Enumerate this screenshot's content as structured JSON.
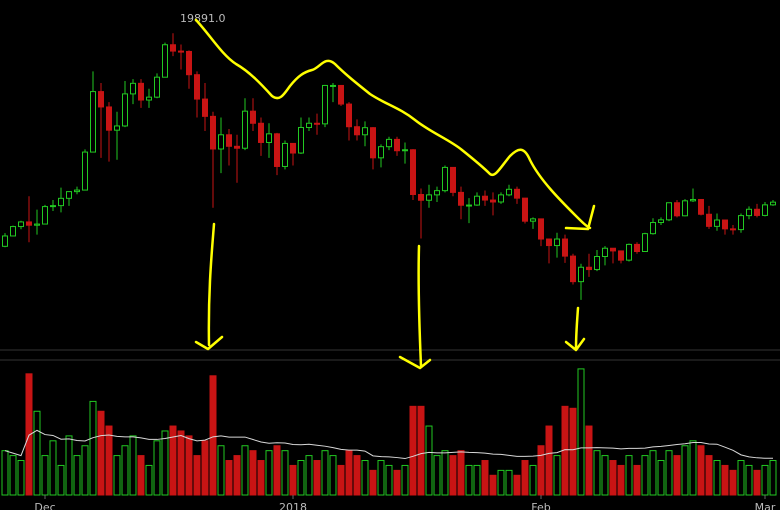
{
  "chart_data": {
    "type": "candlestick",
    "high_annotation": "19891.0",
    "open": [
      8790,
      9330,
      9820,
      10060,
      9890,
      9950,
      10860,
      10910,
      11290,
      11640,
      11720,
      13700,
      16850,
      16050,
      14840,
      15060,
      16730,
      17280,
      16410,
      16560,
      17600,
      19290,
      18960,
      18940,
      17730,
      16460,
      15560,
      13860,
      14600,
      14000,
      13900,
      15830,
      15200,
      14200,
      14650,
      12950,
      14150,
      13650,
      14980,
      15200,
      15170,
      17170,
      17170,
      16200,
      15020,
      14600,
      14970,
      13400,
      13980,
      14360,
      13770,
      13820,
      11490,
      11190,
      11470,
      11690,
      12900,
      11600,
      10930,
      10940,
      11400,
      11200,
      11100,
      11470,
      11760,
      11300,
      10100,
      10220,
      9170,
      8830,
      9170,
      8280,
      6950,
      7700,
      7580,
      8260,
      8690,
      8550,
      8070,
      8890,
      8520,
      9450,
      10030,
      10170,
      11060,
      10380,
      11160,
      11230,
      10460,
      9830,
      10160,
      9700,
      9660,
      10390,
      10720,
      10400,
      10950
    ],
    "high": [
      9480,
      9870,
      10120,
      11400,
      10700,
      10950,
      11200,
      11850,
      11660,
      11900,
      13840,
      17900,
      17300,
      16300,
      15800,
      17400,
      17500,
      17500,
      17000,
      17800,
      19400,
      19891,
      19300,
      19000,
      17900,
      17300,
      15800,
      15500,
      14900,
      14600,
      16500,
      16500,
      15500,
      15200,
      14700,
      14300,
      14150,
      15500,
      15500,
      15700,
      17200,
      17300,
      17170,
      16300,
      15400,
      15300,
      15000,
      14100,
      14500,
      14500,
      14200,
      13850,
      11800,
      12000,
      11900,
      13000,
      12900,
      11900,
      11300,
      11600,
      11700,
      11600,
      11600,
      12000,
      11900,
      11300,
      10300,
      10200,
      9200,
      9500,
      9400,
      8400,
      7880,
      8400,
      8600,
      8800,
      8700,
      8560,
      8940,
      9000,
      9500,
      10250,
      10300,
      11070,
      11200,
      11250,
      11800,
      11250,
      10900,
      10500,
      10000,
      9900,
      10500,
      10870,
      11000,
      11100,
      11200
    ],
    "low": [
      8740,
      9300,
      9680,
      9000,
      9400,
      9950,
      10630,
      10560,
      10900,
      11500,
      11700,
      13700,
      13400,
      13200,
      13300,
      15000,
      16200,
      16000,
      16000,
      16500,
      17600,
      18700,
      18000,
      17000,
      15500,
      14800,
      10800,
      12600,
      13000,
      12100,
      13800,
      14800,
      13500,
      13400,
      12500,
      12800,
      13000,
      13600,
      14800,
      14600,
      15000,
      16300,
      16100,
      14300,
      14300,
      14000,
      12800,
      12900,
      13800,
      13500,
      13100,
      11200,
      9200,
      10800,
      11100,
      11600,
      11400,
      10200,
      10000,
      10900,
      10900,
      10400,
      11000,
      11400,
      11000,
      9980,
      9700,
      8800,
      7900,
      8200,
      7930,
      6800,
      6000,
      7200,
      7500,
      7800,
      7900,
      7900,
      8000,
      8400,
      8500,
      9400,
      9900,
      10100,
      10300,
      10350,
      11100,
      10400,
      9700,
      9600,
      9400,
      9400,
      9500,
      10200,
      10300,
      10350,
      10900
    ],
    "close": [
      9330,
      9820,
      10060,
      9890,
      9950,
      10860,
      10910,
      11290,
      11640,
      11720,
      13700,
      16850,
      16050,
      14840,
      15060,
      16730,
      17280,
      16410,
      16560,
      17600,
      19290,
      18960,
      18940,
      17730,
      16460,
      15560,
      13860,
      14600,
      14000,
      13900,
      15830,
      15200,
      14200,
      14650,
      12950,
      14150,
      13650,
      14980,
      15200,
      15170,
      17170,
      17170,
      16200,
      15020,
      14600,
      14970,
      13400,
      13980,
      14360,
      13770,
      13820,
      11490,
      11190,
      11470,
      11690,
      12900,
      11600,
      10930,
      10940,
      11400,
      11200,
      11100,
      11470,
      11760,
      11300,
      10100,
      10220,
      9170,
      8830,
      9170,
      8280,
      6950,
      7700,
      7580,
      8260,
      8690,
      8550,
      8070,
      8890,
      8520,
      9450,
      10030,
      10170,
      11060,
      10380,
      11160,
      11230,
      10460,
      9830,
      10160,
      9700,
      9660,
      10390,
      10720,
      10400,
      10950,
      11090
    ],
    "volume": [
      45,
      40,
      35,
      123,
      85,
      40,
      55,
      30,
      60,
      40,
      50,
      95,
      85,
      70,
      40,
      50,
      60,
      40,
      30,
      55,
      65,
      70,
      65,
      60,
      40,
      55,
      121,
      50,
      35,
      40,
      50,
      45,
      35,
      45,
      50,
      45,
      30,
      35,
      40,
      35,
      45,
      40,
      30,
      45,
      40,
      35,
      25,
      35,
      30,
      25,
      30,
      90,
      90,
      70,
      40,
      45,
      40,
      45,
      30,
      30,
      35,
      20,
      25,
      25,
      20,
      35,
      30,
      50,
      70,
      40,
      90,
      88,
      128,
      70,
      45,
      40,
      35,
      30,
      40,
      30,
      40,
      45,
      35,
      45,
      40,
      50,
      55,
      50,
      40,
      35,
      30,
      25,
      35,
      30,
      25,
      30,
      35
    ],
    "ma_period": 20,
    "ylim": [
      3650,
      21100
    ],
    "log_scale": false,
    "volume_ylim": [
      0,
      135
    ],
    "xticks": [
      {
        "value": 5,
        "label": "Dec"
      },
      {
        "value": 36,
        "label": "2018"
      },
      {
        "value": 67,
        "label": "Feb"
      },
      {
        "value": 95,
        "label": "Mar"
      }
    ],
    "up_color": "#22c922",
    "down_color": "#c81414",
    "ma_color": "#d8d8d8"
  }
}
